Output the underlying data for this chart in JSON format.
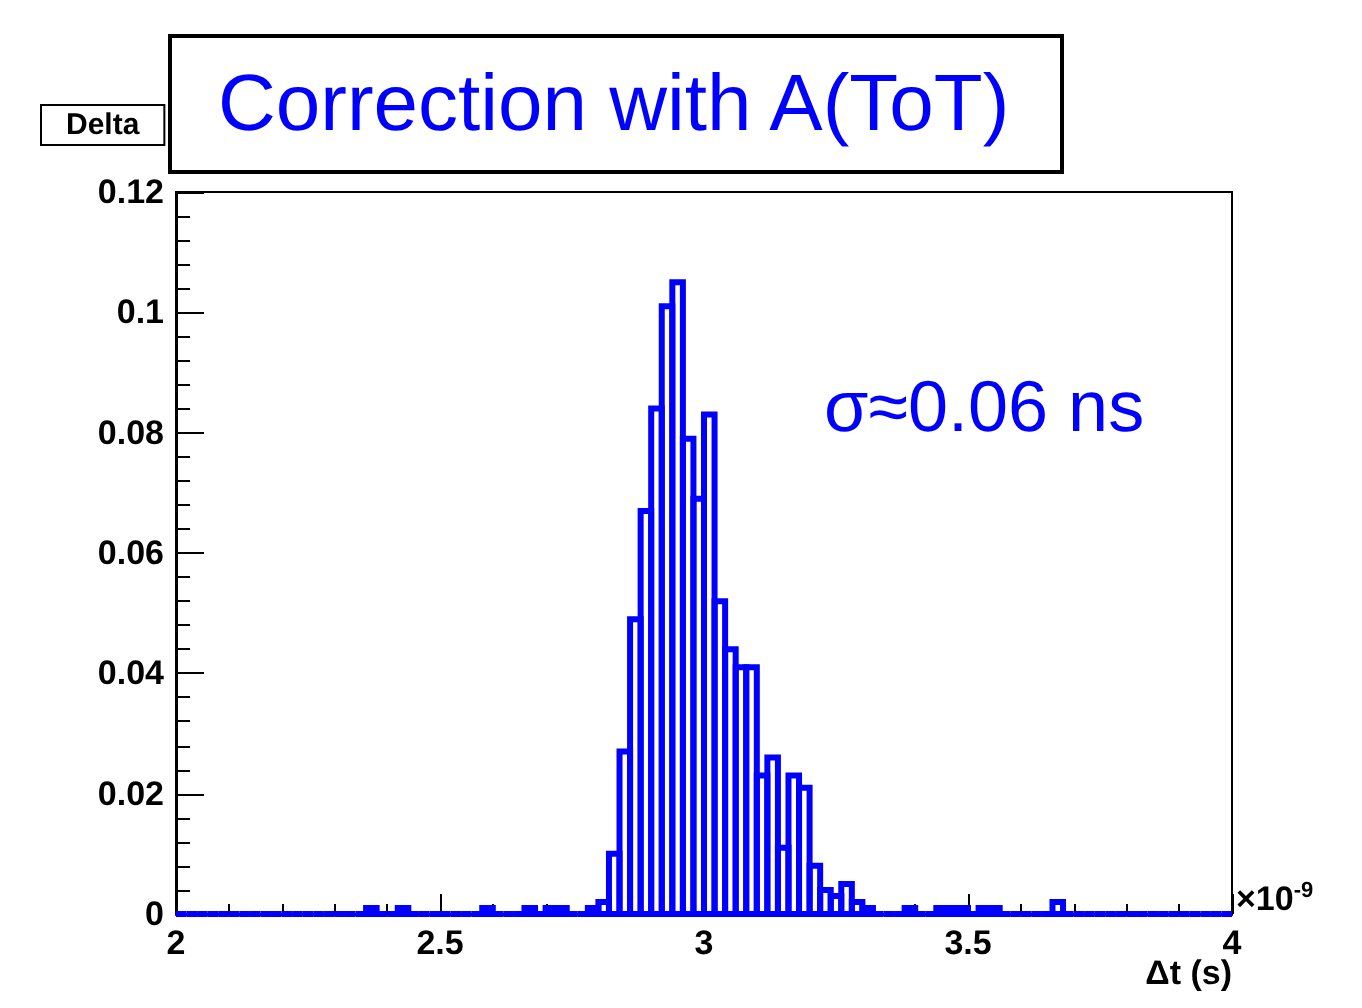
{
  "chart_data": {
    "type": "histogram",
    "title": "Correction with A(ToT)",
    "xlabel": "Δt (s)",
    "annotations": [
      "Delta",
      "σ≈0.06 ns",
      "×10$^{-9}$"
    ],
    "bins": [
      2,
      2.02,
      2.04,
      2.06,
      2.08,
      2.1,
      2.12,
      2.14,
      2.16,
      2.18,
      2.2,
      2.22,
      2.24,
      2.26,
      2.28,
      2.3,
      2.32,
      2.34,
      2.36,
      2.38,
      2.4,
      2.42,
      2.44,
      2.46,
      2.48,
      2.5,
      2.52,
      2.54,
      2.56,
      2.58,
      2.6,
      2.62,
      2.64,
      2.66,
      2.68,
      2.7,
      2.72,
      2.74,
      2.76,
      2.78,
      2.8,
      2.82,
      2.84,
      2.86,
      2.88,
      2.9,
      2.92,
      2.94,
      2.96,
      2.98,
      3,
      3.02,
      3.04,
      3.06,
      3.08,
      3.1,
      3.12,
      3.14,
      3.16,
      3.18,
      3.2,
      3.22,
      3.24,
      3.26,
      3.28,
      3.3,
      3.32,
      3.34,
      3.36,
      3.38,
      3.4,
      3.42,
      3.44,
      3.46,
      3.48,
      3.5,
      3.52,
      3.54,
      3.56,
      3.58,
      3.6,
      3.62,
      3.64,
      3.66,
      3.68,
      3.7,
      3.72,
      3.74,
      3.76,
      3.78,
      3.8,
      3.82,
      3.84,
      3.86,
      3.88,
      3.9,
      3.92,
      3.94,
      3.96,
      3.98,
      4
    ],
    "values": [
      0,
      0,
      0,
      0,
      0,
      0,
      0,
      0,
      0,
      0,
      0,
      0,
      0,
      0,
      0,
      0,
      0,
      0,
      0.001,
      0,
      0,
      0.001,
      0,
      0,
      0,
      0,
      0,
      0,
      0,
      0.001,
      0,
      0,
      0,
      0.001,
      0,
      0.001,
      0.001,
      0,
      0,
      0.001,
      0.002,
      0.01,
      0.027,
      0.049,
      0.067,
      0.084,
      0.101,
      0.105,
      0.079,
      0.069,
      0.083,
      0.052,
      0.044,
      0.041,
      0.041,
      0.023,
      0.026,
      0.011,
      0.023,
      0.021,
      0.008,
      0.004,
      0.003,
      0.005,
      0.002,
      0.001,
      0,
      0,
      0,
      0.001,
      0,
      0,
      0.001,
      0.001,
      0.001,
      0,
      0.001,
      0.001,
      0,
      0,
      0,
      0,
      0,
      0.002,
      0,
      0,
      0,
      0,
      0,
      0,
      0,
      0,
      0,
      0,
      0,
      0,
      0,
      0,
      0,
      0
    ],
    "color": "#0000ff",
    "xlim": [
      2,
      4
    ],
    "xticks": [
      2,
      2.5,
      3,
      3.5,
      4
    ],
    "ylim": [
      0,
      0.12
    ],
    "yticks": [
      0,
      0.02,
      0.04,
      0.06,
      0.08,
      0.1,
      0.12
    ],
    "grid": false
  }
}
